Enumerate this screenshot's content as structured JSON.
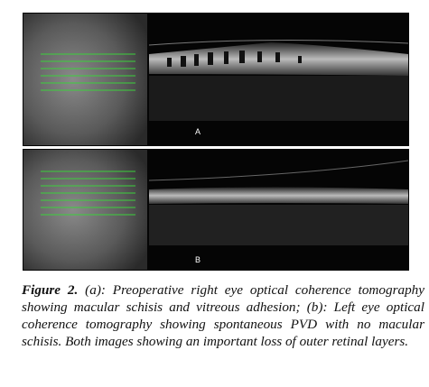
{
  "figure": {
    "panels": [
      {
        "label": "A"
      },
      {
        "label": "B"
      }
    ],
    "caption": {
      "label": "Figure 2.",
      "text": "(a): Preoperative right eye optical coherence tomography showing macular schisis and vitreous adhesion; (b): Left eye optical coherence tomography showing spontaneous PVD with no macular schisis. Both images showing an important loss of outer retinal layers."
    }
  }
}
